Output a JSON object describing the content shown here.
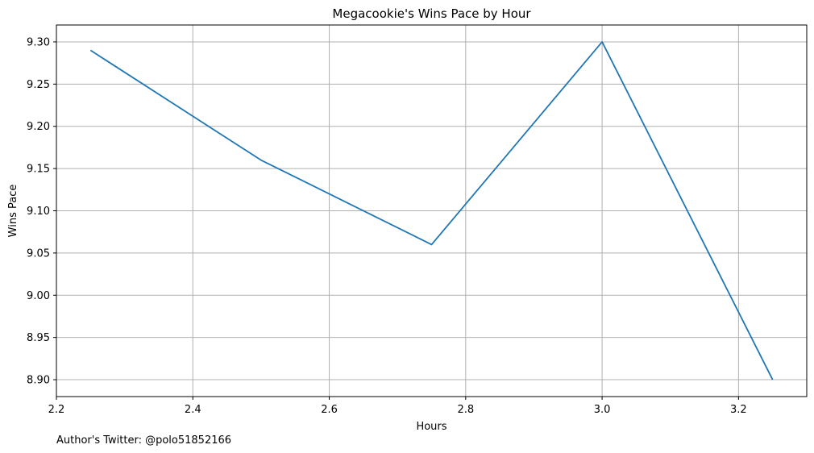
{
  "chart_data": {
    "type": "line",
    "title": "Megacookie's Wins Pace by Hour",
    "xlabel": "Hours",
    "ylabel": "Wins Pace",
    "xlim": [
      2.2,
      3.3
    ],
    "ylim": [
      8.88,
      9.32
    ],
    "xticks": [
      "2.2",
      "2.4",
      "2.6",
      "2.8",
      "3.0",
      "3.2"
    ],
    "yticks": [
      "8.90",
      "8.95",
      "9.00",
      "9.05",
      "9.10",
      "9.15",
      "9.20",
      "9.25",
      "9.30"
    ],
    "grid": true,
    "x": [
      2.25,
      2.5,
      2.75,
      3.0,
      3.25
    ],
    "series": [
      {
        "values": [
          9.29,
          9.16,
          9.06,
          9.3,
          8.9
        ],
        "color": "#1f77b4"
      }
    ]
  },
  "footer": {
    "author_text": "Author's Twitter: @polo51852166"
  }
}
